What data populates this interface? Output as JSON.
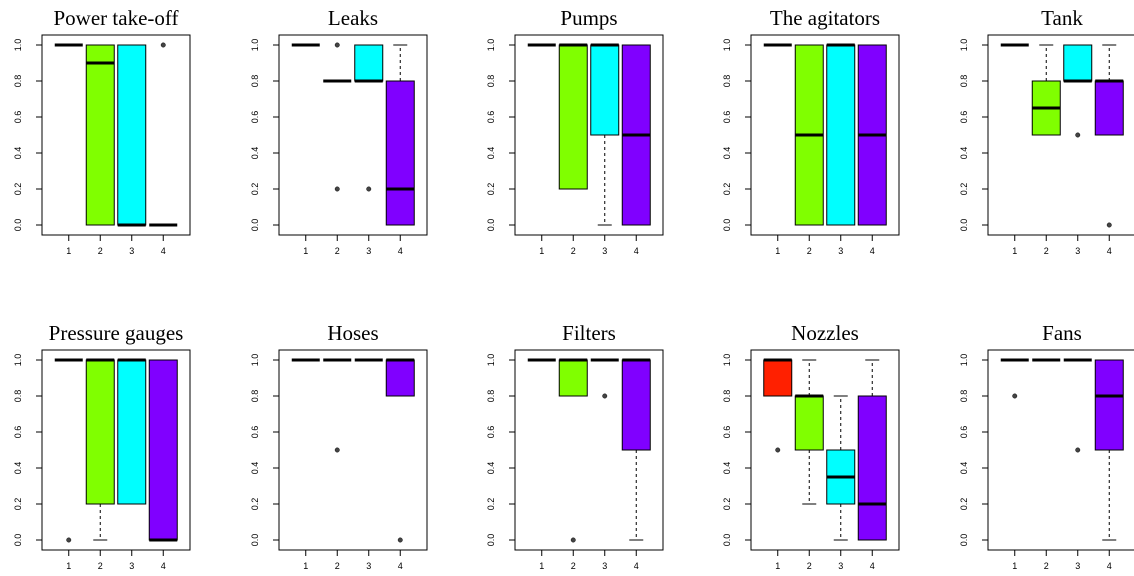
{
  "chart_data": [
    {
      "type": "boxplot",
      "title": "Power take-off",
      "categories": [
        "1",
        "2",
        "3",
        "4"
      ],
      "ylim": [
        0,
        1
      ],
      "yticks": [
        "0.0",
        "0.2",
        "0.4",
        "0.6",
        "0.8",
        "1.0"
      ],
      "boxes": [
        {
          "min": 1.0,
          "q1": 1.0,
          "median": 1.0,
          "q3": 1.0,
          "max": 1.0,
          "outliers": []
        },
        {
          "min": 0.0,
          "q1": 0.0,
          "median": 0.9,
          "q3": 1.0,
          "max": 1.0,
          "outliers": []
        },
        {
          "min": 0.0,
          "q1": 0.0,
          "median": 0.0,
          "q3": 1.0,
          "max": 1.0,
          "outliers": []
        },
        {
          "min": 0.0,
          "q1": 0.0,
          "median": 0.0,
          "q3": 0.0,
          "max": 0.0,
          "outliers": [
            1.0
          ]
        }
      ],
      "colors": [
        "#ffffff",
        "#80ff00",
        "#00ffff",
        "#8000ff"
      ]
    },
    {
      "type": "boxplot",
      "title": "Leaks",
      "categories": [
        "1",
        "2",
        "3",
        "4"
      ],
      "ylim": [
        0,
        1
      ],
      "yticks": [
        "0.0",
        "0.2",
        "0.4",
        "0.6",
        "0.8",
        "1.0"
      ],
      "boxes": [
        {
          "min": 1.0,
          "q1": 1.0,
          "median": 1.0,
          "q3": 1.0,
          "max": 1.0,
          "outliers": []
        },
        {
          "min": 0.8,
          "q1": 0.8,
          "median": 0.8,
          "q3": 0.8,
          "max": 0.8,
          "outliers": [
            1.0,
            0.2
          ]
        },
        {
          "min": 0.8,
          "q1": 0.8,
          "median": 0.8,
          "q3": 1.0,
          "max": 1.0,
          "outliers": [
            0.2
          ]
        },
        {
          "min": 0.0,
          "q1": 0.0,
          "median": 0.2,
          "q3": 0.8,
          "max": 1.0,
          "outliers": []
        }
      ],
      "colors": [
        "#ffffff",
        "#80ff00",
        "#00ffff",
        "#8000ff"
      ]
    },
    {
      "type": "boxplot",
      "title": "Pumps",
      "categories": [
        "1",
        "2",
        "3",
        "4"
      ],
      "ylim": [
        0,
        1
      ],
      "yticks": [
        "0.0",
        "0.2",
        "0.4",
        "0.6",
        "0.8",
        "1.0"
      ],
      "boxes": [
        {
          "min": 1.0,
          "q1": 1.0,
          "median": 1.0,
          "q3": 1.0,
          "max": 1.0,
          "outliers": []
        },
        {
          "min": 0.2,
          "q1": 0.2,
          "median": 1.0,
          "q3": 1.0,
          "max": 1.0,
          "outliers": []
        },
        {
          "min": 0.0,
          "q1": 0.5,
          "median": 1.0,
          "q3": 1.0,
          "max": 1.0,
          "outliers": []
        },
        {
          "min": 0.0,
          "q1": 0.0,
          "median": 0.5,
          "q3": 1.0,
          "max": 1.0,
          "outliers": []
        }
      ],
      "colors": [
        "#ffffff",
        "#80ff00",
        "#00ffff",
        "#8000ff"
      ]
    },
    {
      "type": "boxplot",
      "title": "The agitators",
      "categories": [
        "1",
        "2",
        "3",
        "4"
      ],
      "ylim": [
        0,
        1
      ],
      "yticks": [
        "0.0",
        "0.2",
        "0.4",
        "0.6",
        "0.8",
        "1.0"
      ],
      "boxes": [
        {
          "min": 1.0,
          "q1": 1.0,
          "median": 1.0,
          "q3": 1.0,
          "max": 1.0,
          "outliers": []
        },
        {
          "min": 0.0,
          "q1": 0.0,
          "median": 0.5,
          "q3": 1.0,
          "max": 1.0,
          "outliers": []
        },
        {
          "min": 0.0,
          "q1": 0.0,
          "median": 1.0,
          "q3": 1.0,
          "max": 1.0,
          "outliers": []
        },
        {
          "min": 0.0,
          "q1": 0.0,
          "median": 0.5,
          "q3": 1.0,
          "max": 1.0,
          "outliers": []
        }
      ],
      "colors": [
        "#ffffff",
        "#80ff00",
        "#00ffff",
        "#8000ff"
      ]
    },
    {
      "type": "boxplot",
      "title": "Tank",
      "categories": [
        "1",
        "2",
        "3",
        "4"
      ],
      "ylim": [
        0,
        1
      ],
      "yticks": [
        "0.0",
        "0.2",
        "0.4",
        "0.6",
        "0.8",
        "1.0"
      ],
      "boxes": [
        {
          "min": 1.0,
          "q1": 1.0,
          "median": 1.0,
          "q3": 1.0,
          "max": 1.0,
          "outliers": []
        },
        {
          "min": 0.5,
          "q1": 0.5,
          "median": 0.65,
          "q3": 0.8,
          "max": 1.0,
          "outliers": []
        },
        {
          "min": 0.8,
          "q1": 0.8,
          "median": 0.8,
          "q3": 1.0,
          "max": 1.0,
          "outliers": [
            0.5
          ]
        },
        {
          "min": 0.5,
          "q1": 0.5,
          "median": 0.8,
          "q3": 0.8,
          "max": 1.0,
          "outliers": [
            0.0
          ]
        }
      ],
      "colors": [
        "#ffffff",
        "#80ff00",
        "#00ffff",
        "#8000ff"
      ]
    },
    {
      "type": "boxplot",
      "title": "Pressure gauges",
      "categories": [
        "1",
        "2",
        "3",
        "4"
      ],
      "ylim": [
        0,
        1
      ],
      "yticks": [
        "0.0",
        "0.2",
        "0.4",
        "0.6",
        "0.8",
        "1.0"
      ],
      "boxes": [
        {
          "min": 1.0,
          "q1": 1.0,
          "median": 1.0,
          "q3": 1.0,
          "max": 1.0,
          "outliers": [
            0.0
          ]
        },
        {
          "min": 0.0,
          "q1": 0.2,
          "median": 1.0,
          "q3": 1.0,
          "max": 1.0,
          "outliers": []
        },
        {
          "min": 0.2,
          "q1": 0.2,
          "median": 1.0,
          "q3": 1.0,
          "max": 1.0,
          "outliers": []
        },
        {
          "min": 0.0,
          "q1": 0.0,
          "median": 0.0,
          "q3": 1.0,
          "max": 1.0,
          "outliers": []
        }
      ],
      "colors": [
        "#ffffff",
        "#80ff00",
        "#00ffff",
        "#8000ff"
      ]
    },
    {
      "type": "boxplot",
      "title": "Hoses",
      "categories": [
        "1",
        "2",
        "3",
        "4"
      ],
      "ylim": [
        0,
        1
      ],
      "yticks": [
        "0.0",
        "0.2",
        "0.4",
        "0.6",
        "0.8",
        "1.0"
      ],
      "boxes": [
        {
          "min": 1.0,
          "q1": 1.0,
          "median": 1.0,
          "q3": 1.0,
          "max": 1.0,
          "outliers": []
        },
        {
          "min": 1.0,
          "q1": 1.0,
          "median": 1.0,
          "q3": 1.0,
          "max": 1.0,
          "outliers": [
            0.5
          ]
        },
        {
          "min": 1.0,
          "q1": 1.0,
          "median": 1.0,
          "q3": 1.0,
          "max": 1.0,
          "outliers": []
        },
        {
          "min": 0.8,
          "q1": 0.8,
          "median": 1.0,
          "q3": 1.0,
          "max": 1.0,
          "outliers": [
            0.0
          ]
        }
      ],
      "colors": [
        "#ffffff",
        "#80ff00",
        "#00ffff",
        "#8000ff"
      ]
    },
    {
      "type": "boxplot",
      "title": "Filters",
      "categories": [
        "1",
        "2",
        "3",
        "4"
      ],
      "ylim": [
        0,
        1
      ],
      "yticks": [
        "0.0",
        "0.2",
        "0.4",
        "0.6",
        "0.8",
        "1.0"
      ],
      "boxes": [
        {
          "min": 1.0,
          "q1": 1.0,
          "median": 1.0,
          "q3": 1.0,
          "max": 1.0,
          "outliers": []
        },
        {
          "min": 0.8,
          "q1": 0.8,
          "median": 1.0,
          "q3": 1.0,
          "max": 1.0,
          "outliers": [
            0.0
          ]
        },
        {
          "min": 1.0,
          "q1": 1.0,
          "median": 1.0,
          "q3": 1.0,
          "max": 1.0,
          "outliers": [
            0.8
          ]
        },
        {
          "min": 0.0,
          "q1": 0.5,
          "median": 1.0,
          "q3": 1.0,
          "max": 1.0,
          "outliers": []
        }
      ],
      "colors": [
        "#ffffff",
        "#80ff00",
        "#00ffff",
        "#8000ff"
      ]
    },
    {
      "type": "boxplot",
      "title": "Nozzles",
      "categories": [
        "1",
        "2",
        "3",
        "4"
      ],
      "ylim": [
        0,
        1
      ],
      "yticks": [
        "0.0",
        "0.2",
        "0.4",
        "0.6",
        "0.8",
        "1.0"
      ],
      "boxes": [
        {
          "min": 0.8,
          "q1": 0.8,
          "median": 1.0,
          "q3": 1.0,
          "max": 1.0,
          "outliers": [
            0.5
          ]
        },
        {
          "min": 0.2,
          "q1": 0.5,
          "median": 0.8,
          "q3": 0.8,
          "max": 1.0,
          "outliers": []
        },
        {
          "min": 0.0,
          "q1": 0.2,
          "median": 0.35,
          "q3": 0.5,
          "max": 0.8,
          "outliers": []
        },
        {
          "min": 0.0,
          "q1": 0.0,
          "median": 0.2,
          "q3": 0.8,
          "max": 1.0,
          "outliers": []
        }
      ],
      "colors": [
        "#ff2000",
        "#80ff00",
        "#00ffff",
        "#8000ff"
      ]
    },
    {
      "type": "boxplot",
      "title": "Fans",
      "categories": [
        "1",
        "2",
        "3",
        "4"
      ],
      "ylim": [
        0,
        1
      ],
      "yticks": [
        "0.0",
        "0.2",
        "0.4",
        "0.6",
        "0.8",
        "1.0"
      ],
      "boxes": [
        {
          "min": 1.0,
          "q1": 1.0,
          "median": 1.0,
          "q3": 1.0,
          "max": 1.0,
          "outliers": [
            0.8
          ]
        },
        {
          "min": 1.0,
          "q1": 1.0,
          "median": 1.0,
          "q3": 1.0,
          "max": 1.0,
          "outliers": []
        },
        {
          "min": 1.0,
          "q1": 1.0,
          "median": 1.0,
          "q3": 1.0,
          "max": 1.0,
          "outliers": [
            0.5
          ]
        },
        {
          "min": 0.0,
          "q1": 0.5,
          "median": 0.8,
          "q3": 1.0,
          "max": 1.0,
          "outliers": []
        }
      ],
      "colors": [
        "#ffffff",
        "#80ff00",
        "#00ffff",
        "#8000ff"
      ]
    }
  ]
}
